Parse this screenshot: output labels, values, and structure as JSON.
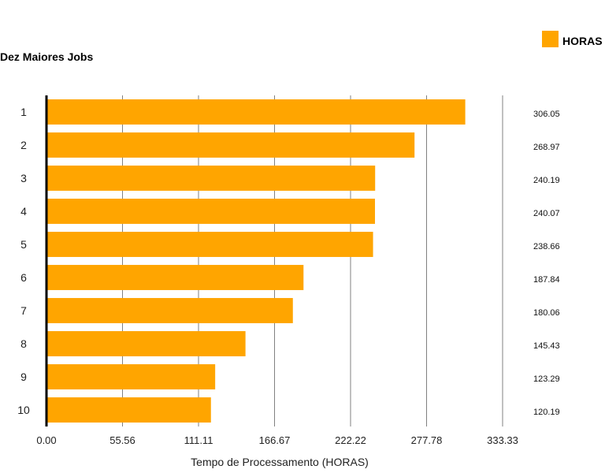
{
  "chart_data": {
    "type": "bar",
    "orientation": "horizontal",
    "title": "Dez Maiores Jobs",
    "xlabel": "Tempo de Processamento (HORAS)",
    "ylabel": "",
    "categories": [
      "1",
      "2",
      "3",
      "4",
      "5",
      "6",
      "7",
      "8",
      "9",
      "10"
    ],
    "series": [
      {
        "name": "HORAS",
        "color": "#FFA500",
        "values": [
          306.05,
          268.97,
          240.19,
          240.07,
          238.66,
          187.84,
          180.06,
          145.43,
          123.29,
          120.19
        ]
      }
    ],
    "value_labels": [
      "306.05",
      "268.97",
      "240.19",
      "240.07",
      "238.66",
      "187.84",
      "180.06",
      "145.43",
      "123.29",
      "120.19"
    ],
    "xlim": [
      0,
      333.33
    ],
    "x_ticks": [
      "0.00",
      "55.56",
      "111.11",
      "166.67",
      "222.22",
      "277.78",
      "333.33"
    ],
    "grid": true,
    "legend": "top-right"
  }
}
